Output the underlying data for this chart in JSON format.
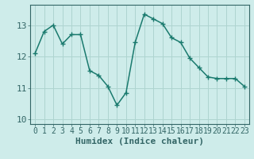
{
  "x": [
    0,
    1,
    2,
    3,
    4,
    5,
    6,
    7,
    8,
    9,
    10,
    11,
    12,
    13,
    14,
    15,
    16,
    17,
    18,
    19,
    20,
    21,
    22,
    23
  ],
  "y": [
    12.1,
    12.8,
    13.0,
    12.4,
    12.7,
    12.7,
    11.55,
    11.4,
    11.05,
    10.45,
    10.85,
    12.45,
    13.35,
    13.2,
    13.05,
    12.6,
    12.45,
    11.95,
    11.65,
    11.35,
    11.3,
    11.3,
    11.3,
    11.05
  ],
  "line_color": "#1a7a6e",
  "marker": "+",
  "bg_color": "#ceecea",
  "grid_color": "#aed4d0",
  "axis_color": "#336666",
  "xlabel": "Humidex (Indice chaleur)",
  "xlim": [
    -0.5,
    23.5
  ],
  "ylim": [
    9.85,
    13.65
  ],
  "yticks": [
    10,
    11,
    12,
    13
  ],
  "xticks": [
    0,
    1,
    2,
    3,
    4,
    5,
    6,
    7,
    8,
    9,
    10,
    11,
    12,
    13,
    14,
    15,
    16,
    17,
    18,
    19,
    20,
    21,
    22,
    23
  ],
  "fontsize": 7,
  "linewidth": 1.1
}
